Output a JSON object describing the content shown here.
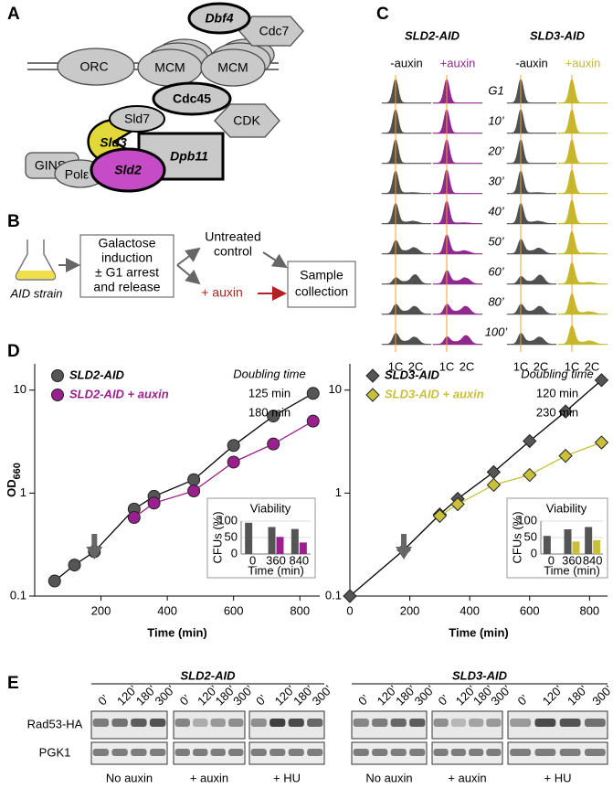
{
  "panel_a": {
    "letter": "A",
    "orc": "ORC",
    "mcm": [
      "MCM",
      "MCM"
    ],
    "dbf4": "Dbf4",
    "cdc7": "Cdc7",
    "cdc45": "Cdc45",
    "sld7": "Sld7",
    "sld3": "Sld3",
    "cdk": "CDK",
    "dpb11": "Dpb11",
    "gins": "GINS",
    "pole": "Polε",
    "sld2": "Sld2"
  },
  "panel_b": {
    "letter": "B",
    "strain": "AID strain",
    "induction": [
      "Galactose",
      "induction",
      "± G1 arrest",
      "and release"
    ],
    "control": [
      "Untreated",
      "control"
    ],
    "auxin": "+ auxin",
    "collection": [
      "Sample",
      "collection"
    ]
  },
  "panel_c": {
    "letter": "C",
    "strains": [
      "SLD2-AID",
      "SLD3-AID"
    ],
    "conditions": [
      "-auxin",
      "+auxin"
    ],
    "auxin_colors": [
      "#8e2a8c",
      "#c2b92c"
    ],
    "timepoints": [
      "G1",
      "10’",
      "20’",
      "30’",
      "40’",
      "50’",
      "60’",
      "80’",
      "100’"
    ],
    "dna_content": [
      "1C",
      "2C"
    ]
  },
  "panel_d": {
    "letter": "D"
  },
  "chart_data": [
    {
      "type": "line",
      "log_y": true,
      "xlim": [
        0,
        860
      ],
      "ylim": [
        0.1,
        18
      ],
      "xticks": [
        200,
        400,
        600,
        800
      ],
      "yticks": [
        0.1,
        1,
        10
      ],
      "x_label": "Time (min)",
      "y_label": "OD",
      "y_label_sub": "660",
      "doubling_time_title": "Doubling time",
      "marker": "circle",
      "arrow_x": 180,
      "series": [
        {
          "name": "SLD2-AID",
          "color": "#555555",
          "doubling_time": "125 min",
          "x": [
            60,
            120,
            180,
            300,
            360,
            480,
            600,
            720,
            840
          ],
          "values": [
            0.14,
            0.2,
            0.27,
            0.7,
            0.93,
            1.35,
            2.9,
            5.6,
            9.3
          ]
        },
        {
          "name": "SLD2-AID + auxin",
          "color": "#9c1f8f",
          "doubling_time": "180 min",
          "x": [
            300,
            360,
            480,
            600,
            720,
            840
          ],
          "values": [
            0.58,
            0.8,
            1.05,
            2.0,
            3.0,
            5.0
          ]
        }
      ]
    },
    {
      "type": "line",
      "log_y": true,
      "xlim": [
        0,
        860
      ],
      "ylim": [
        0.1,
        18
      ],
      "xticks": [
        0,
        200,
        400,
        600,
        800
      ],
      "yticks": [
        0.1,
        1,
        10
      ],
      "x_label": "Time (min)",
      "doubling_time_title": "Doubling time",
      "marker": "diamond",
      "arrow_x": 180,
      "series": [
        {
          "name": "SLD3-AID",
          "color": "#555555",
          "doubling_time": "120 min",
          "x": [
            0,
            180,
            300,
            360,
            480,
            600,
            720,
            840
          ],
          "values": [
            0.1,
            0.28,
            0.62,
            0.88,
            1.6,
            3.2,
            6.2,
            12.5
          ]
        },
        {
          "name": "SLD3-AID + auxin",
          "color": "#c8c03a",
          "doubling_time": "230 min",
          "x": [
            300,
            360,
            480,
            600,
            720,
            840
          ],
          "values": [
            0.6,
            0.78,
            1.2,
            1.5,
            2.3,
            3.1
          ]
        }
      ]
    },
    {
      "type": "bar",
      "title": "Viability",
      "categories": [
        "0",
        "360",
        "840"
      ],
      "ylim": [
        0,
        100
      ],
      "yticks": [
        0,
        50,
        100
      ],
      "grid": true,
      "y_label": "CFUs (%)",
      "x_label": "Time (min)",
      "series": [
        {
          "color": "#555555",
          "values": [
            95,
            82,
            76
          ]
        },
        {
          "color": "#9c1f8f",
          "values": [
            null,
            52,
            35
          ]
        }
      ]
    },
    {
      "type": "bar",
      "title": "Viability",
      "categories": [
        "0",
        "360",
        "840"
      ],
      "ylim": [
        0,
        100
      ],
      "yticks": [
        0,
        50,
        100
      ],
      "grid": true,
      "y_label": "CFUs (%)",
      "x_label": "Time (min)",
      "series": [
        {
          "color": "#555555",
          "values": [
            55,
            75,
            82
          ]
        },
        {
          "color": "#c8c03a",
          "values": [
            null,
            38,
            42
          ]
        }
      ]
    }
  ],
  "panel_e": {
    "letter": "E",
    "strains": [
      "SLD2-AID",
      "SLD3-AID"
    ],
    "lanes": [
      "0’",
      "120’",
      "180’",
      "300’"
    ],
    "proteins": [
      "Rad53-HA",
      "PGK1"
    ],
    "conditions": [
      "No auxin",
      "+ auxin",
      "+ HU"
    ]
  }
}
